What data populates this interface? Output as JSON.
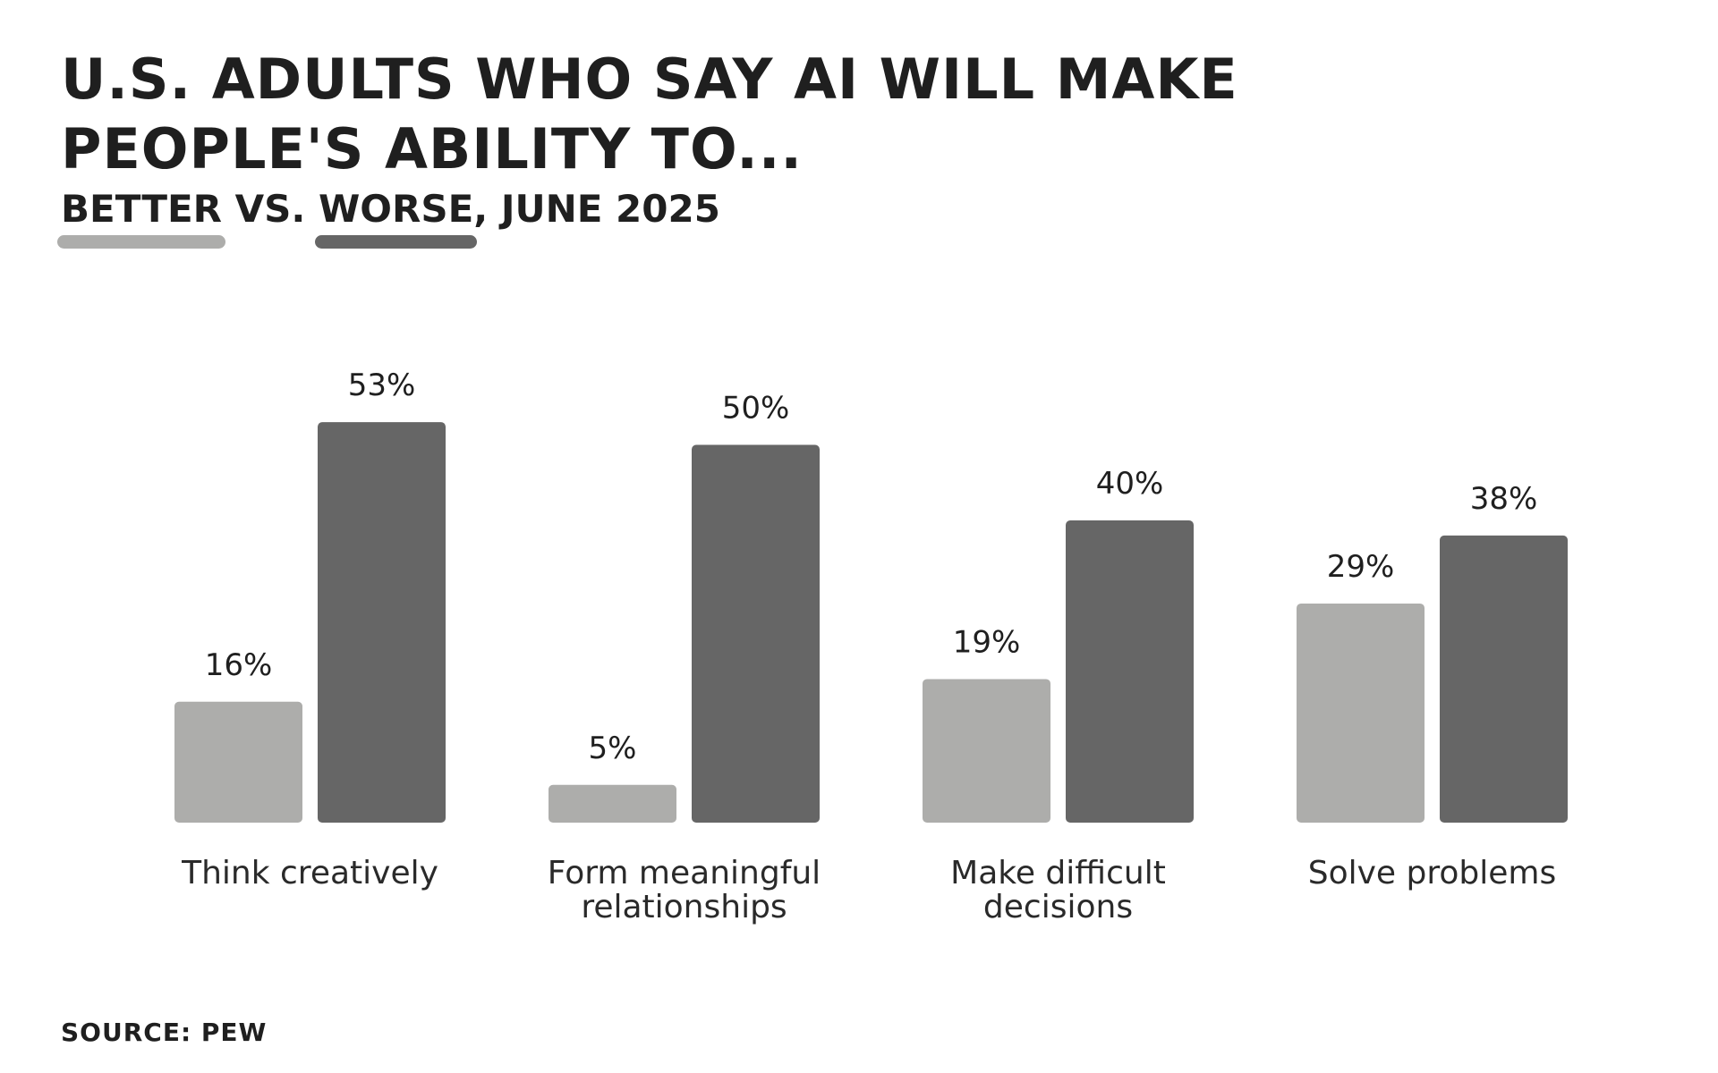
{
  "title": "U.S. adults who say AI will make people's ability to...",
  "subtitle": {
    "better": "Better",
    "vs": "vs.",
    "worse": "Worse",
    "date": ", June 2025"
  },
  "source": "Source: Pew",
  "colors": {
    "better": "#adadab",
    "worse": "#666666",
    "text": "#1f1f1f"
  },
  "chart_data": {
    "type": "bar",
    "title": "U.S. adults who say AI will make people's ability to...",
    "subtitle": "Better vs. Worse, June 2025",
    "xlabel": "",
    "ylabel": "",
    "ylim": [
      0,
      60
    ],
    "grid": false,
    "legend": "top-left, under title",
    "categories": [
      [
        "Think creatively"
      ],
      [
        "Form meaningful",
        "relationships"
      ],
      [
        "Make difficult",
        "decisions"
      ],
      [
        "Solve problems"
      ]
    ],
    "series": [
      {
        "name": "Better",
        "color_key": "better",
        "values": [
          16,
          5,
          19,
          29
        ],
        "labels": [
          "16%",
          "5%",
          "19%",
          "29%"
        ]
      },
      {
        "name": "Worse",
        "color_key": "worse",
        "values": [
          53,
          50,
          40,
          38
        ],
        "labels": [
          "53%",
          "50%",
          "40%",
          "38%"
        ]
      }
    ],
    "source": "Pew"
  }
}
